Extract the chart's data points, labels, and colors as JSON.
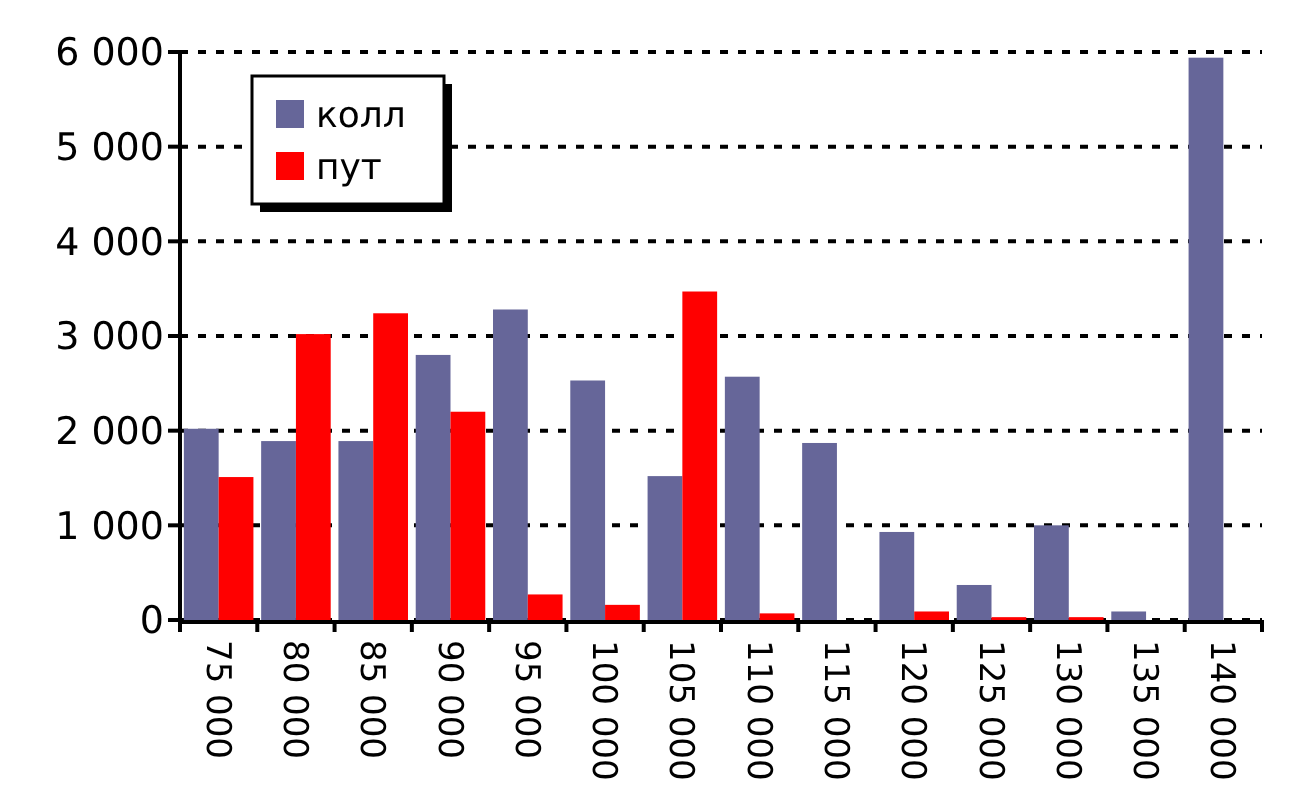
{
  "chart_data": {
    "type": "bar",
    "categories": [
      "75 000",
      "80 000",
      "85 000",
      "90 000",
      "95 000",
      "100 000",
      "105 000",
      "110 000",
      "115 000",
      "120 000",
      "125 000",
      "130 000",
      "135 000",
      "140 000"
    ],
    "series": [
      {
        "name": "колл",
        "color": "#666699",
        "values": [
          2020,
          1890,
          1890,
          2800,
          3280,
          2530,
          1520,
          2570,
          1870,
          930,
          370,
          1000,
          90,
          5940
        ]
      },
      {
        "name": "пут",
        "color": "#ff0000",
        "values": [
          1510,
          3020,
          3240,
          2200,
          270,
          160,
          3470,
          70,
          0,
          90,
          30,
          30,
          0,
          0
        ]
      }
    ],
    "ylim": [
      0,
      6000
    ],
    "yticks": [
      {
        "value": 0,
        "label": "0"
      },
      {
        "value": 1000,
        "label": "1 000"
      },
      {
        "value": 2000,
        "label": "2 000"
      },
      {
        "value": 3000,
        "label": "3 000"
      },
      {
        "value": 4000,
        "label": "4 000"
      },
      {
        "value": 5000,
        "label": "5 000"
      },
      {
        "value": 6000,
        "label": "6 000"
      }
    ],
    "grid": "y",
    "legend": "top left"
  }
}
